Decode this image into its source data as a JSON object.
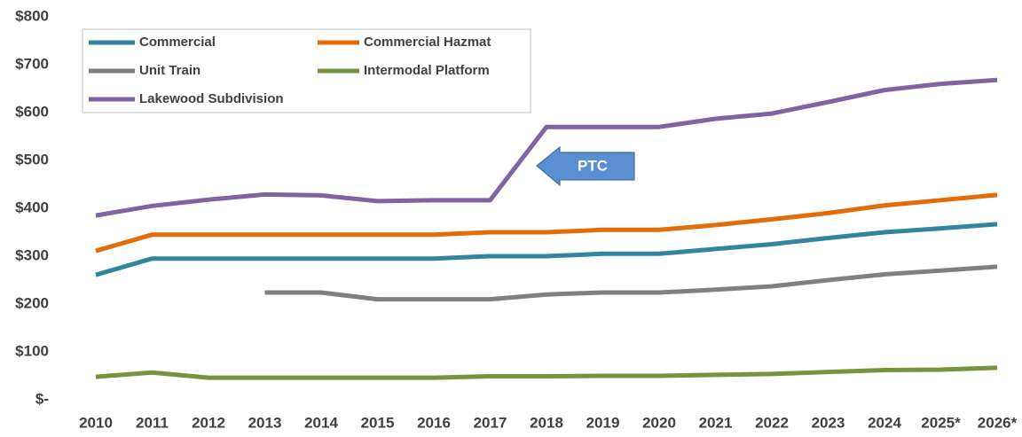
{
  "chart_data": {
    "type": "line",
    "categories": [
      "2010",
      "2011",
      "2012",
      "2013",
      "2014",
      "2015",
      "2016",
      "2017",
      "2018",
      "2019",
      "2020",
      "2021",
      "2022",
      "2023",
      "2024",
      "2025*",
      "2026*"
    ],
    "series": [
      {
        "name": "Commercial",
        "color": "#31859c",
        "values": [
          261,
          295,
          295,
          295,
          295,
          295,
          295,
          300,
          300,
          305,
          305,
          315,
          325,
          338,
          350,
          358,
          367
        ]
      },
      {
        "name": "Commercial Hazmat",
        "color": "#e36c09",
        "values": [
          311,
          345,
          345,
          345,
          345,
          345,
          345,
          350,
          350,
          355,
          355,
          365,
          377,
          390,
          406,
          417,
          428
        ]
      },
      {
        "name": "Unit Train",
        "color": "#808080",
        "values": [
          null,
          null,
          null,
          224,
          224,
          210,
          210,
          210,
          220,
          224,
          224,
          230,
          237,
          250,
          262,
          270,
          278
        ]
      },
      {
        "name": "Intermodal Platform",
        "color": "#77933c",
        "values": [
          48,
          57,
          46,
          46,
          46,
          46,
          46,
          49,
          49,
          50,
          50,
          52,
          54,
          58,
          62,
          63,
          67
        ]
      },
      {
        "name": "Lakewood Subdivision",
        "color": "#8064a2",
        "values": [
          385,
          405,
          418,
          429,
          427,
          415,
          417,
          417,
          570,
          570,
          570,
          587,
          598,
          622,
          647,
          660,
          668
        ]
      }
    ],
    "ylim": [
      0,
      800
    ],
    "yticks": [
      {
        "value": 0,
        "label": "$-"
      },
      {
        "value": 100,
        "label": "$100"
      },
      {
        "value": 200,
        "label": "$200"
      },
      {
        "value": 300,
        "label": "$300"
      },
      {
        "value": 400,
        "label": "$400"
      },
      {
        "value": 500,
        "label": "$500"
      },
      {
        "value": 600,
        "label": "$600"
      },
      {
        "value": 700,
        "label": "$700"
      },
      {
        "value": 800,
        "label": "$800"
      }
    ],
    "grid": false,
    "legend": "top-left",
    "annotation": "PTC"
  }
}
